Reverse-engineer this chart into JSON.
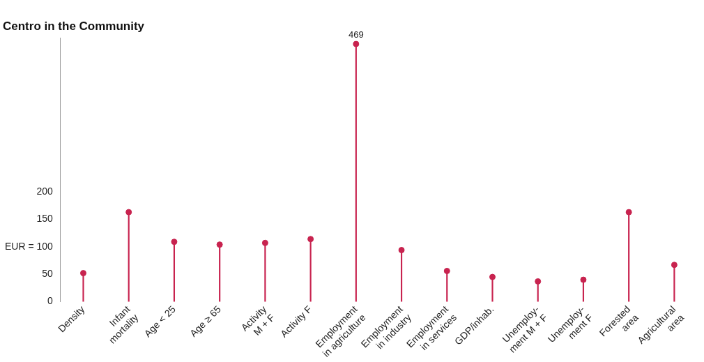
{
  "chart_data": {
    "type": "lollipop",
    "title": "Centro in the Community",
    "categories": [
      "Density",
      "Infant\nmortality",
      "Age < 25",
      "Age ≥ 65",
      "Activity\nM + F",
      "Activity F",
      "Employment\nin agriculture",
      "Employment\nin industry",
      "Employment\nin services",
      "GDP/inhab.",
      "Unemploy-\nment M + F",
      "Unemploy-\nment F",
      "Forested\narea",
      "Agricultural\narea"
    ],
    "values": [
      52,
      163,
      109,
      104,
      107,
      114,
      469,
      94,
      56,
      45,
      37,
      40,
      163,
      67
    ],
    "value_labels": [
      null,
      null,
      null,
      null,
      null,
      null,
      "469",
      null,
      null,
      null,
      null,
      null,
      null,
      null
    ],
    "color": "#c8234f",
    "marker": "circle",
    "grid": false,
    "legend": false,
    "ylim": [
      0,
      480
    ],
    "yticks": [
      0,
      50,
      {
        "value": 100,
        "label": "EUR = 100"
      },
      150,
      200
    ]
  }
}
